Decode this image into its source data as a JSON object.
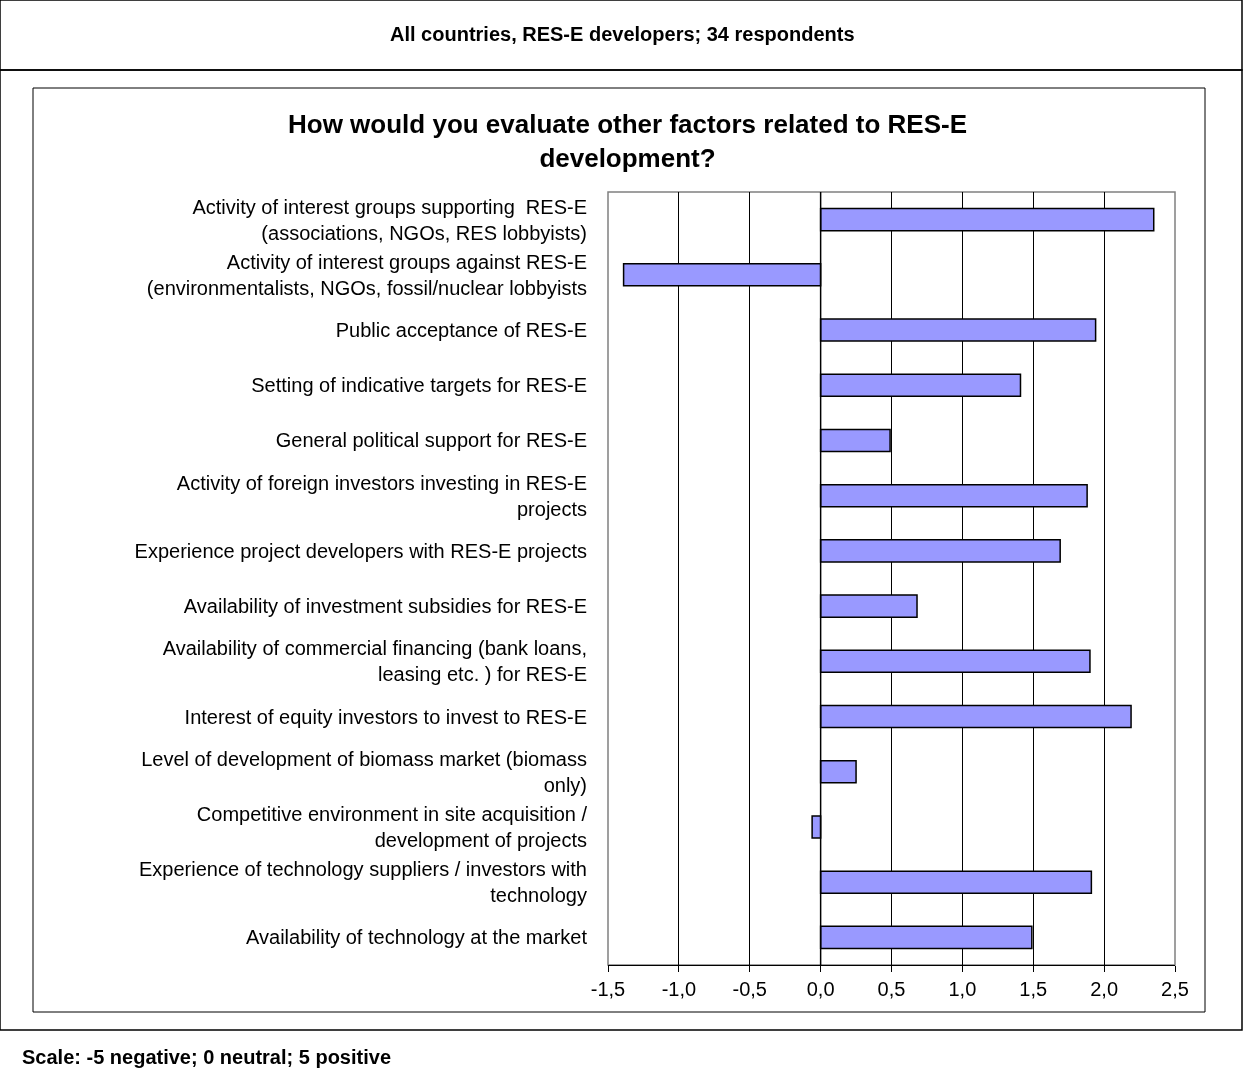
{
  "chart_data": {
    "type": "bar",
    "orientation": "horizontal",
    "title": "All countries, RES-E developers; 34 respondents",
    "subtitle": "How would you evaluate other factors related to RES-E\ndevelopment?",
    "categories": [
      "Activity of interest groups supporting  RES-E\n(associations, NGOs, RES lobbyists)",
      "Activity of interest groups against RES-E\n(environmentalists, NGOs, fossil/nuclear lobbyists",
      "Public acceptance of RES-E",
      "Setting of indicative targets for RES-E",
      "General political support for RES-E",
      "Activity of foreign investors investing in RES-E\nprojects",
      "Experience project developers with RES-E projects",
      "Availability of investment subsidies for RES-E",
      "Availability of commercial financing (bank loans,\nleasing etc. ) for RES-E",
      "Interest of equity investors to invest to RES-E",
      "Level of development of biomass market (biomass\nonly)",
      "Competitive environment in site acquisition /\ndevelopment of projects",
      "Experience of technology suppliers / investors with\ntechnology",
      "Availability of technology at the market"
    ],
    "values": [
      2.35,
      -1.39,
      1.94,
      1.41,
      0.49,
      1.88,
      1.69,
      0.68,
      1.9,
      2.19,
      0.25,
      -0.06,
      1.91,
      1.49
    ],
    "color": "#9999ff",
    "xlim": [
      -1.5,
      2.5
    ],
    "xticks": [
      {
        "value": -1.5,
        "label": "-1,5"
      },
      {
        "value": -1.0,
        "label": "-1,0"
      },
      {
        "value": -0.5,
        "label": "-0,5"
      },
      {
        "value": 0,
        "label": "0,0"
      },
      {
        "value": 0.5,
        "label": "0,5"
      },
      {
        "value": 1.0,
        "label": "1,0"
      },
      {
        "value": 1.5,
        "label": "1,5"
      },
      {
        "value": 2.0,
        "label": "2,0"
      },
      {
        "value": 2.5,
        "label": "2,5"
      }
    ],
    "grid": "x",
    "legend": false,
    "annotations": [
      "Scale: -5 negative; 0 neutral; 5 positive"
    ]
  }
}
